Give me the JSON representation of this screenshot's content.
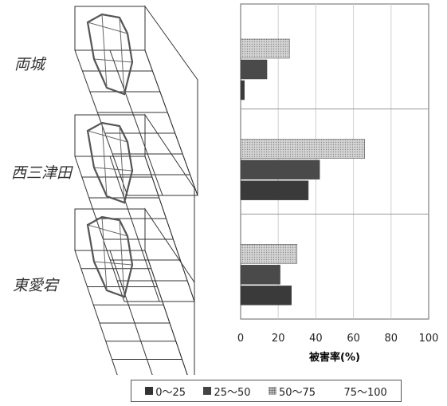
{
  "sites": [
    {
      "name": "両城"
    },
    {
      "name": "西三津田"
    },
    {
      "name": "東愛宕"
    }
  ],
  "chart_data": {
    "type": "bar",
    "orientation": "horizontal",
    "categories": [
      "両城",
      "西三津田",
      "東愛宕"
    ],
    "series": [
      {
        "name": "0〜25",
        "color": "#3a3a3a",
        "values": [
          2,
          36,
          27
        ]
      },
      {
        "name": "25〜50",
        "color": "#4a4a4a",
        "values": [
          14,
          42,
          21
        ]
      },
      {
        "name": "50〜75",
        "color": "#c8c8c8",
        "pattern": "dotted",
        "values": [
          26,
          66,
          30
        ]
      },
      {
        "name": "75〜100",
        "color": "#ffffff",
        "values": [
          0,
          0,
          0
        ]
      }
    ],
    "xlabel": "被害率(%)",
    "xlim": [
      0,
      100
    ],
    "xticks": [
      "0",
      "20",
      "40",
      "60",
      "80",
      "100"
    ],
    "grid": true,
    "legend_position": "bottom"
  }
}
